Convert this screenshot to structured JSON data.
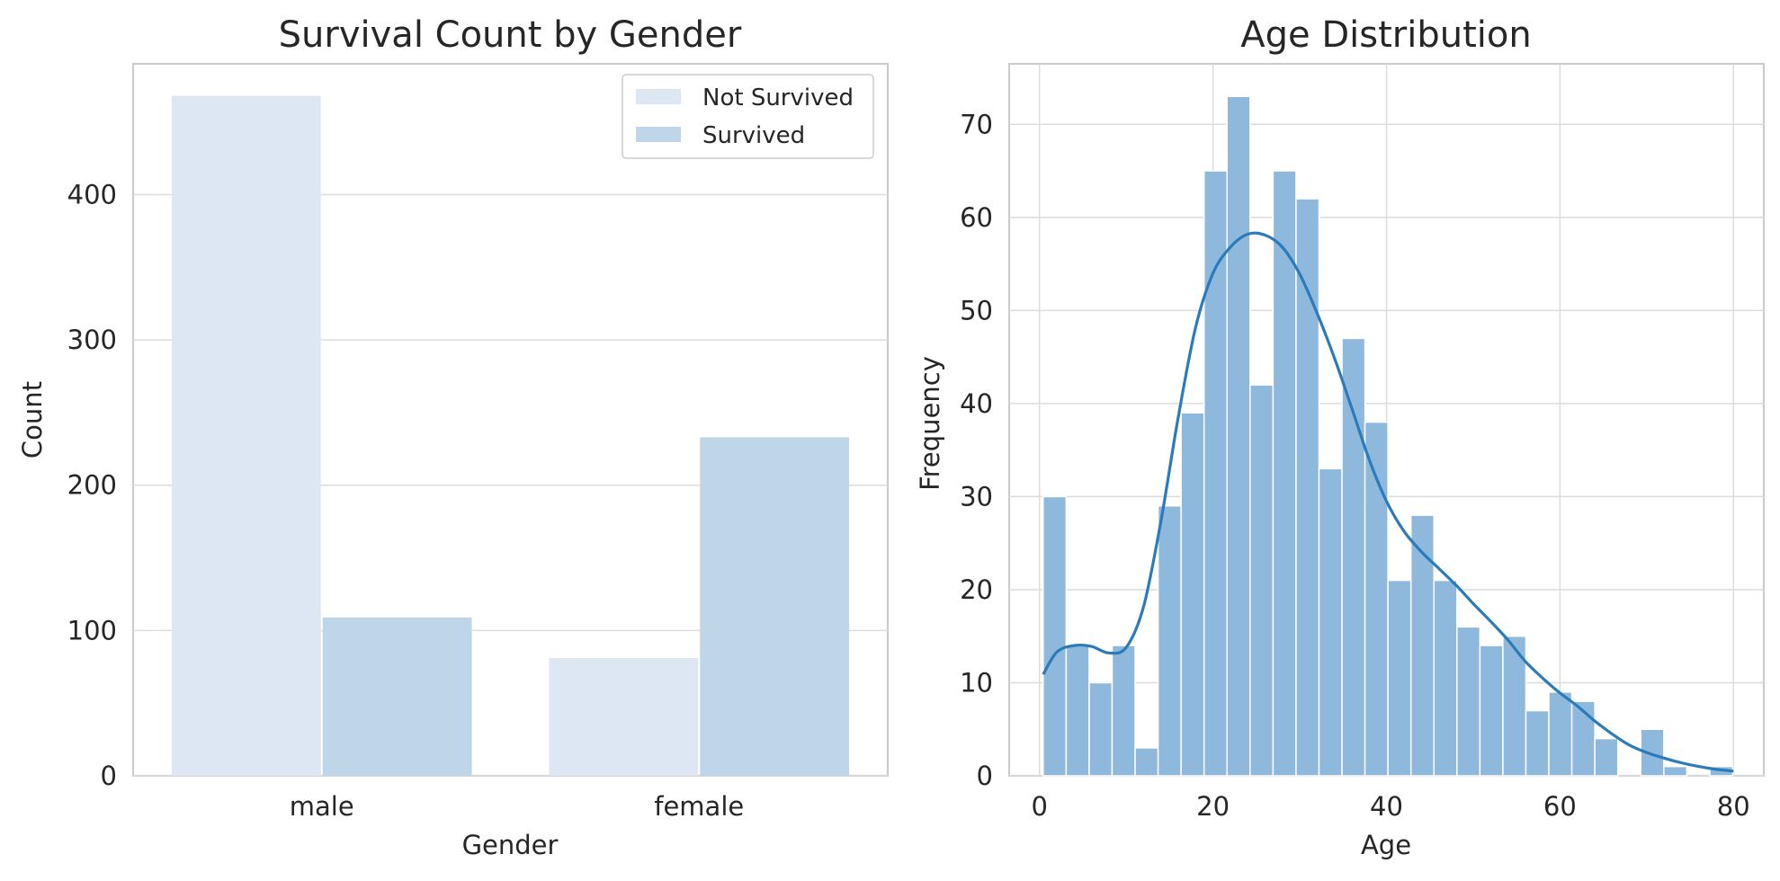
{
  "chart_data": [
    {
      "type": "bar",
      "title": "Survival Count by Gender",
      "xlabel": "Gender",
      "ylabel": "Count",
      "categories": [
        "male",
        "female"
      ],
      "series": [
        {
          "name": "Not Survived",
          "values": [
            468,
            81
          ],
          "color": "#dde7f3"
        },
        {
          "name": "Survived",
          "values": [
            109,
            233
          ],
          "color": "#bfd5e8"
        }
      ],
      "ylim": [
        0,
        490
      ],
      "yticks": [
        0,
        100,
        200,
        300,
        400
      ],
      "legend": {
        "position": "top-right",
        "labels": [
          "Not Survived",
          "Survived"
        ]
      },
      "grid": "horizontal"
    },
    {
      "type": "bar",
      "subtype": "histogram",
      "title": "Age Distribution",
      "xlabel": "Age",
      "ylabel": "Frequency",
      "bin_start": 0.42,
      "bin_width": 2.65,
      "counts": [
        30,
        14,
        10,
        14,
        3,
        29,
        39,
        65,
        73,
        42,
        65,
        62,
        33,
        47,
        38,
        21,
        28,
        21,
        16,
        14,
        15,
        7,
        9,
        8,
        4,
        0,
        5,
        1,
        0,
        1
      ],
      "bar_color": "#8fb9dc",
      "kde": {
        "x": [
          0.42,
          2,
          4,
          6,
          8,
          10,
          12,
          14,
          16,
          18,
          20,
          22,
          24,
          26,
          28,
          30,
          32,
          34,
          36,
          38,
          40,
          42,
          44,
          46,
          48,
          50,
          52,
          54,
          56,
          58,
          60,
          62,
          64,
          66,
          68,
          70,
          72,
          74,
          76,
          78,
          80
        ],
        "y": [
          10.9,
          13.3,
          14.0,
          13.9,
          13.2,
          13.8,
          18.2,
          27.4,
          38.6,
          48.2,
          54.0,
          56.8,
          58.2,
          58.1,
          56.8,
          53.9,
          49.7,
          44.9,
          39.5,
          34.0,
          29.5,
          26.3,
          24.1,
          22.3,
          20.5,
          18.5,
          16.6,
          14.6,
          12.3,
          10.5,
          8.9,
          7.5,
          5.9,
          4.5,
          3.3,
          2.5,
          1.9,
          1.4,
          1.0,
          0.7,
          0.5
        ],
        "color": "#2b7bba"
      },
      "xlim": [
        -3.5,
        83.5
      ],
      "ylim": [
        0,
        76.5
      ],
      "xticks": [
        0,
        20,
        40,
        60,
        80
      ],
      "yticks": [
        0,
        10,
        20,
        30,
        40,
        50,
        60,
        70
      ],
      "grid": "both"
    }
  ]
}
